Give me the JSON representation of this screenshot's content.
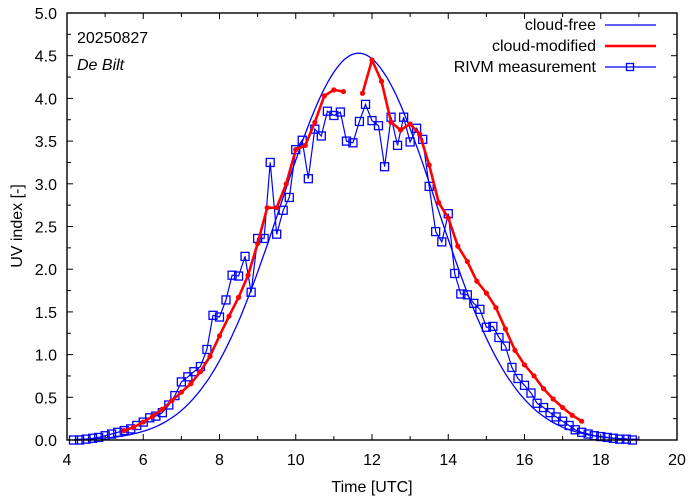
{
  "chart_data": {
    "type": "line",
    "title": "",
    "annotations": {
      "date": "20250827",
      "station": "De Bilt"
    },
    "xlabel": "Time  [UTC]",
    "ylabel": "UV index  [-]",
    "xlim": [
      4,
      20
    ],
    "ylim": [
      0,
      5
    ],
    "xticks": [
      4,
      6,
      8,
      10,
      12,
      14,
      16,
      18,
      20
    ],
    "xtick_labels": [
      "4",
      "6",
      "8",
      "10",
      "12",
      "14",
      "16",
      "18",
      "20"
    ],
    "yticks": [
      0,
      0.5,
      1,
      1.5,
      2,
      2.5,
      3,
      3.5,
      4,
      4.5,
      5
    ],
    "ytick_labels": [
      "0.0",
      "0.5",
      "1.0",
      "1.5",
      "2.0",
      "2.5",
      "3.0",
      "3.5",
      "4.0",
      "4.5",
      "5.0"
    ],
    "grid": false,
    "legend_position": "top-right",
    "series": [
      {
        "name": "cloud-free",
        "color": "#0000ff",
        "style": "line",
        "model": "gaussian",
        "peak_time": 11.65,
        "peak_value": 4.53,
        "sigma_hours": 2.05,
        "x_range": [
          4.2,
          19.0
        ]
      },
      {
        "name": "cloud-modified",
        "color": "#ff0000",
        "style": "line-dots",
        "segments": [
          {
            "x": [
              5.5,
              5.75,
              6.0,
              6.25,
              6.5,
              6.75,
              7.0,
              7.25,
              7.5,
              7.75,
              8.0,
              8.25,
              8.5,
              8.75,
              9.0,
              9.25,
              9.5,
              9.75,
              10.0,
              10.25,
              10.5,
              10.75,
              11.0,
              11.25
            ],
            "y": [
              0.11,
              0.15,
              0.21,
              0.28,
              0.36,
              0.46,
              0.56,
              0.66,
              0.8,
              0.98,
              1.22,
              1.45,
              1.67,
              1.93,
              2.3,
              2.72,
              2.72,
              3.0,
              3.4,
              3.45,
              3.72,
              4.03,
              4.1,
              4.08
            ]
          },
          {
            "x": [
              11.75,
              12.0,
              12.25,
              12.5,
              12.75,
              13.0,
              13.25,
              13.5,
              13.75,
              14.0,
              14.25,
              14.5,
              14.75,
              15.0,
              15.25,
              15.5,
              15.75,
              16.0,
              16.25,
              16.5,
              16.75,
              17.0,
              17.25,
              17.5
            ],
            "y": [
              4.06,
              4.45,
              4.2,
              3.72,
              3.63,
              3.7,
              3.58,
              3.22,
              2.78,
              2.6,
              2.27,
              2.09,
              1.86,
              1.72,
              1.55,
              1.3,
              1.05,
              0.88,
              0.75,
              0.6,
              0.48,
              0.38,
              0.29,
              0.22
            ]
          }
        ]
      },
      {
        "name": "RIVM measurement",
        "color": "#0000ff",
        "style": "line-squares",
        "x": [
          4.17,
          4.33,
          4.5,
          4.67,
          4.83,
          5.0,
          5.17,
          5.33,
          5.5,
          5.67,
          5.83,
          6.0,
          6.17,
          6.33,
          6.5,
          6.67,
          6.83,
          7.0,
          7.17,
          7.33,
          7.5,
          7.67,
          7.83,
          8.0,
          8.17,
          8.33,
          8.5,
          8.67,
          8.83,
          9.0,
          9.17,
          9.33,
          9.5,
          9.67,
          9.83,
          10.0,
          10.17,
          10.33,
          10.5,
          10.67,
          10.83,
          11.0,
          11.17,
          11.33,
          11.5,
          11.67,
          11.83,
          12.0,
          12.17,
          12.33,
          12.5,
          12.67,
          12.83,
          13.0,
          13.17,
          13.33,
          13.5,
          13.67,
          13.83,
          14.0,
          14.17,
          14.33,
          14.5,
          14.67,
          14.83,
          15.0,
          15.17,
          15.33,
          15.5,
          15.67,
          15.83,
          16.0,
          16.17,
          16.33,
          16.5,
          16.67,
          16.83,
          17.0,
          17.17,
          17.33,
          17.5,
          17.67,
          17.83,
          18.0,
          18.17,
          18.33,
          18.5,
          18.67,
          18.83
        ],
        "y": [
          0.0,
          0.0,
          0.01,
          0.02,
          0.03,
          0.05,
          0.07,
          0.09,
          0.11,
          0.13,
          0.17,
          0.21,
          0.26,
          0.28,
          0.32,
          0.41,
          0.52,
          0.68,
          0.74,
          0.8,
          0.86,
          1.06,
          1.46,
          1.44,
          1.64,
          1.93,
          1.92,
          2.15,
          1.73,
          2.36,
          2.36,
          3.25,
          2.41,
          2.69,
          2.84,
          3.4,
          3.51,
          3.06,
          3.64,
          3.56,
          3.85,
          3.8,
          3.84,
          3.5,
          3.48,
          3.73,
          3.93,
          3.74,
          3.68,
          3.2,
          3.78,
          3.45,
          3.78,
          3.49,
          3.65,
          3.52,
          2.97,
          2.44,
          2.32,
          2.65,
          1.95,
          1.71,
          1.7,
          1.6,
          1.53,
          1.32,
          1.33,
          1.2,
          1.1,
          0.85,
          0.72,
          0.64,
          0.55,
          0.43,
          0.38,
          0.32,
          0.27,
          0.22,
          0.17,
          0.12,
          0.09,
          0.07,
          0.05,
          0.04,
          0.03,
          0.02,
          0.01,
          0.01,
          0.0
        ]
      }
    ]
  }
}
